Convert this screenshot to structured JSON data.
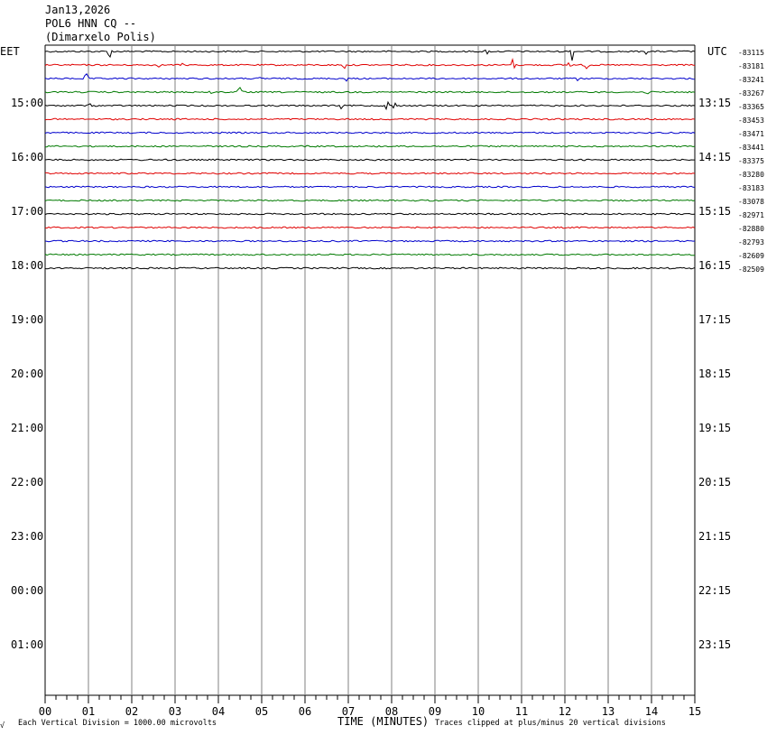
{
  "header": {
    "date": "Jan13,2026",
    "station": "POL6 HNN CQ --",
    "location": "(Dimarxelo Polis)"
  },
  "left_zone_label": "EET",
  "right_zone_label": "UTC",
  "footer": {
    "corner_mark": "√",
    "scale_note": "Each Vertical Division = 1000.00 microvolts",
    "x_title": "TIME (MINUTES)",
    "clip_note": "Traces clipped at plus/minus 20 vertical divisions"
  },
  "chart_data": {
    "type": "line",
    "title": "POL6 HNN CQ -- (Dimarxelo Polis)",
    "xlabel": "TIME (MINUTES)",
    "ylabel": "",
    "xlim": [
      0,
      15
    ],
    "x_ticks": [
      "00",
      "01",
      "02",
      "03",
      "04",
      "05",
      "06",
      "07",
      "08",
      "09",
      "10",
      "11",
      "12",
      "13",
      "14",
      "15"
    ],
    "left_hour_labels": [
      "15:00",
      "16:00",
      "17:00",
      "18:00",
      "19:00",
      "20:00",
      "21:00",
      "22:00",
      "23:00",
      "00:00",
      "01:00"
    ],
    "right_hour_labels": [
      "13:15",
      "14:15",
      "15:15",
      "16:15",
      "17:15",
      "18:15",
      "19:15",
      "20:15",
      "21:15",
      "22:15",
      "23:15"
    ],
    "trace_color_cycle": [
      "#000000",
      "#e00000",
      "#0000cc",
      "#007a00"
    ],
    "grid": "vertical lines every minute",
    "traces": [
      {
        "offset": "-83115",
        "color": "#000000",
        "events": [
          {
            "t": 1.5,
            "amp": 12
          },
          {
            "t": 10.2,
            "amp": 4
          },
          {
            "t": 12.15,
            "amp": 15
          },
          {
            "t": 13.85,
            "amp": 5
          }
        ]
      },
      {
        "offset": "-83181",
        "color": "#e00000",
        "events": [
          {
            "t": 2.6,
            "amp": 3
          },
          {
            "t": 3.2,
            "amp": 3
          },
          {
            "t": 6.9,
            "amp": 8
          },
          {
            "t": 10.8,
            "amp": 9
          },
          {
            "t": 12.1,
            "amp": 8
          },
          {
            "t": 12.5,
            "amp": 5
          }
        ]
      },
      {
        "offset": "-83241",
        "color": "#0000cc",
        "events": [
          {
            "t": 0.95,
            "amp": 8
          },
          {
            "t": 5.0,
            "amp": 4
          },
          {
            "t": 6.95,
            "amp": 4
          },
          {
            "t": 12.3,
            "amp": 4
          }
        ]
      },
      {
        "offset": "-83267",
        "color": "#007a00",
        "events": [
          {
            "t": 3.8,
            "amp": 7
          },
          {
            "t": 4.5,
            "amp": 8
          },
          {
            "t": 13.9,
            "amp": 3
          }
        ]
      },
      {
        "offset": "-83365",
        "color": "#000000",
        "events": [
          {
            "t": 1.0,
            "amp": 5
          },
          {
            "t": 6.85,
            "amp": 7
          },
          {
            "t": 7.9,
            "amp": 8
          },
          {
            "t": 8.05,
            "amp": 7
          }
        ]
      },
      {
        "offset": "-83453",
        "color": "#e00000",
        "events": []
      },
      {
        "offset": "-83471",
        "color": "#0000cc",
        "events": []
      },
      {
        "offset": "-83441",
        "color": "#007a00",
        "events": []
      },
      {
        "offset": "-83375",
        "color": "#000000",
        "events": []
      },
      {
        "offset": "-83280",
        "color": "#e00000",
        "events": []
      },
      {
        "offset": "-83183",
        "color": "#0000cc",
        "events": []
      },
      {
        "offset": "-83078",
        "color": "#007a00",
        "events": []
      },
      {
        "offset": "-82971",
        "color": "#000000",
        "events": []
      },
      {
        "offset": "-82880",
        "color": "#e00000",
        "events": []
      },
      {
        "offset": "-82793",
        "color": "#0000cc",
        "events": []
      },
      {
        "offset": "-82609",
        "color": "#007a00",
        "events": []
      },
      {
        "offset": "-82509",
        "color": "#000000",
        "events": []
      }
    ]
  }
}
